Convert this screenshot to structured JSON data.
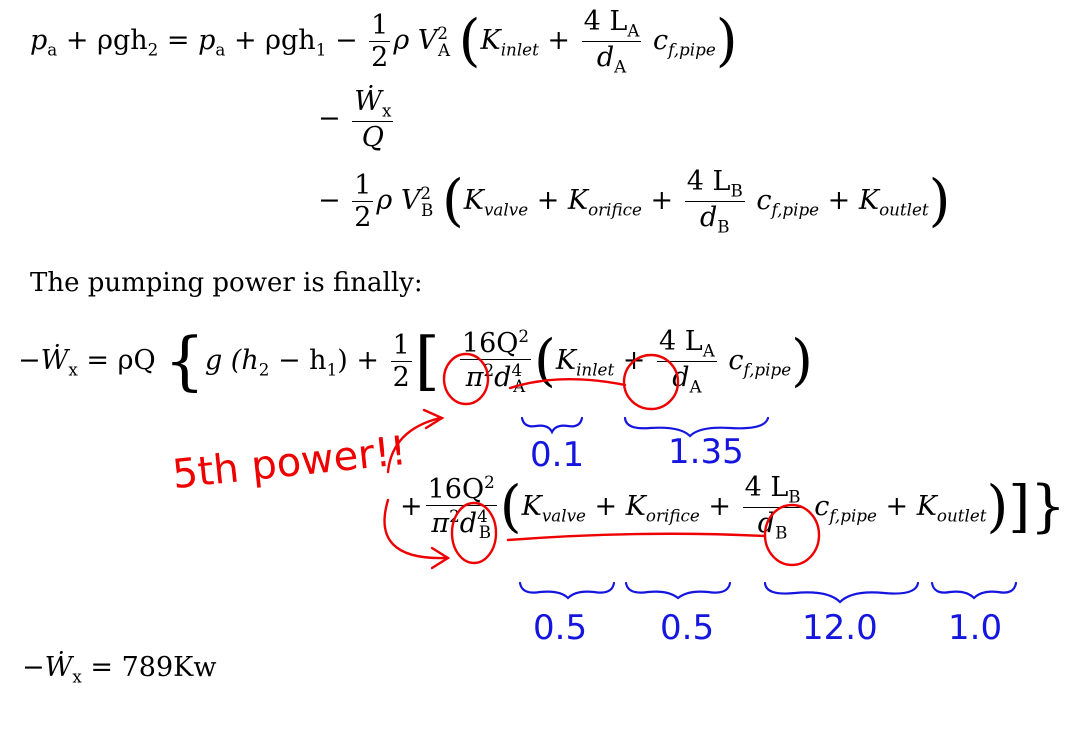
{
  "equation1": {
    "line1": {
      "lhs": "p",
      "lhs_sub": "a",
      "p1": " + ρgh",
      "p1_sub": "2",
      "eq": " = ",
      "r1": "p",
      "r1_sub": "a",
      "r2": " + ρgh",
      "r2_sub": "1",
      "minus": " − ",
      "half_num": "1",
      "half_den": "2",
      "rho": "ρ V",
      "v_sup": "2",
      "v_sub": "A",
      "K": "K",
      "K_sub": "inlet",
      "plus": " + ",
      "frac_num": "4 L",
      "frac_num_sub": "A",
      "frac_den": "d",
      "frac_den_sub": "A",
      "cf": "c",
      "cf_sub": "f,pipe"
    },
    "line2": {
      "minus": "− ",
      "num": "Ẇ",
      "num_sub": "x",
      "den": "Q"
    },
    "line3": {
      "minus": "− ",
      "half_num": "1",
      "half_den": "2",
      "rho": "ρ V",
      "v_sup": "2",
      "v_sub": "B",
      "K1": "K",
      "K1_sub": "valve",
      "plus1": " + ",
      "K2": "K",
      "K2_sub": "orifice",
      "plus2": " + ",
      "frac_num": "4 L",
      "frac_num_sub": "B",
      "frac_den": "d",
      "frac_den_sub": "B",
      "cf": "c",
      "cf_sub": "f,pipe",
      "plus3": " + ",
      "K3": "K",
      "K3_sub": "outlet"
    }
  },
  "paragraph": "The pumping power is finally:",
  "equation2": {
    "line1": {
      "lhs": "−Ẇ",
      "lhs_sub": "x",
      "eq": " = ρQ ",
      "g": "g (h",
      "h2_sub": "2",
      "mid": " − h",
      "h1_sub": "1",
      "close": ") + ",
      "half_num": "1",
      "half_den": "2",
      "f_num": "16Q",
      "f_num_sup": "2",
      "f_den": "π",
      "f_den_sup": "2",
      "f_den_d": "d",
      "f_den_d_sup": "4",
      "f_den_d_sub": "A",
      "K": "K",
      "K_sub": "inlet",
      "plus": " + ",
      "frac_num": "4 L",
      "frac_num_sub": "A",
      "frac_den": "d",
      "frac_den_sub": "A",
      "cf": "c",
      "cf_sub": "f,pipe"
    },
    "line2": {
      "plus": "+",
      "f_num": "16Q",
      "f_num_sup": "2",
      "f_den": "π",
      "f_den_sup": "2",
      "f_den_d": "d",
      "f_den_d_sup": "4",
      "f_den_d_sub": "B",
      "K1": "K",
      "K1_sub": "valve",
      "plus1": " + ",
      "K2": "K",
      "K2_sub": "orifice",
      "plus2": " + ",
      "frac_num": "4 L",
      "frac_num_sub": "B",
      "frac_den": "d",
      "frac_den_sub": "B",
      "cf": "c",
      "cf_sub": "f,pipe",
      "plus3": " + ",
      "K3": "K",
      "K3_sub": "outlet"
    }
  },
  "annotations": {
    "red_note": "5th power!!",
    "blue_values_A": [
      "0.1",
      "1.35"
    ],
    "blue_values_B": [
      "0.5",
      "0.5",
      "12.0",
      "1.0"
    ],
    "red_color": "#e00000",
    "blue_color": "#1515e0"
  },
  "result": {
    "lhs": "−Ẇ",
    "lhs_sub": "x",
    "rhs": " = 789Kw"
  }
}
